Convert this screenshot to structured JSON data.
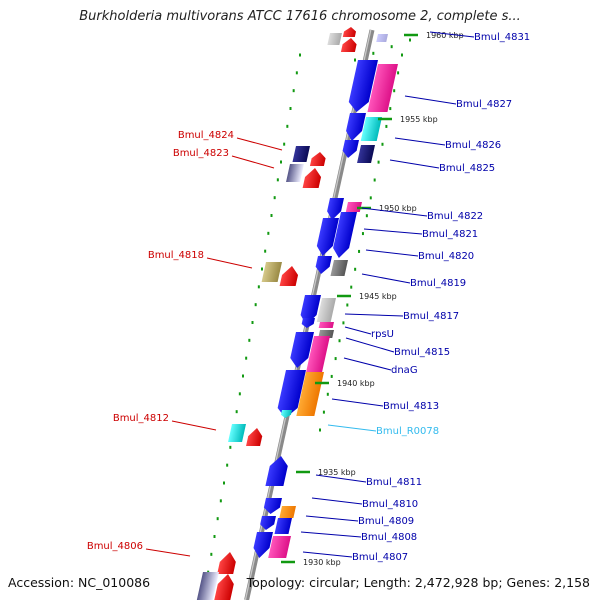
{
  "title": "Burkholderia multivorans ATCC 17616 chromosome 2, complete s...",
  "accession": "Accession: NC_010086",
  "topology": "Topology: circular; Length: 2,472,928 bp; Genes: 2,158",
  "colors": {
    "blue": "#1010ee",
    "pink": "#ee2299",
    "cyan": "#11dddd",
    "navy": "#111166",
    "gray": "#777777",
    "lightgray": "#bbbbbb",
    "olive": "#b8a85a",
    "orange": "#ff8800",
    "red": "#ee1111",
    "lavender": "#9999cc",
    "right_label": "#0000aa",
    "left_label": "#cc0000",
    "rna_label": "#33bbee",
    "tick_green": "#009900",
    "backbone": "#888888"
  },
  "scale": {
    "ticks": [
      {
        "label": "1960 kbp"
      },
      {
        "label": "1955 kbp"
      },
      {
        "label": "1950 kbp"
      },
      {
        "label": "1945 kbp"
      },
      {
        "label": "1940 kbp"
      },
      {
        "label": "1935 kbp"
      },
      {
        "label": "1930 kbp"
      }
    ]
  },
  "labels_right": [
    {
      "text": "Bmul_4831",
      "kind": "gene"
    },
    {
      "text": "Bmul_4827",
      "kind": "gene"
    },
    {
      "text": "Bmul_4826",
      "kind": "gene"
    },
    {
      "text": "Bmul_4825",
      "kind": "gene"
    },
    {
      "text": "Bmul_4822",
      "kind": "gene"
    },
    {
      "text": "Bmul_4821",
      "kind": "gene"
    },
    {
      "text": "Bmul_4820",
      "kind": "gene"
    },
    {
      "text": "Bmul_4819",
      "kind": "gene"
    },
    {
      "text": "Bmul_4817",
      "kind": "gene"
    },
    {
      "text": "rpsU",
      "kind": "gene"
    },
    {
      "text": "Bmul_4815",
      "kind": "gene"
    },
    {
      "text": "dnaG",
      "kind": "gene"
    },
    {
      "text": "Bmul_4813",
      "kind": "gene"
    },
    {
      "text": "Bmul_R0078",
      "kind": "rna"
    },
    {
      "text": "Bmul_4811",
      "kind": "gene"
    },
    {
      "text": "Bmul_4810",
      "kind": "gene"
    },
    {
      "text": "Bmul_4809",
      "kind": "gene"
    },
    {
      "text": "Bmul_4808",
      "kind": "gene"
    },
    {
      "text": "Bmul_4807",
      "kind": "gene"
    }
  ],
  "labels_left": [
    {
      "text": "Bmul_4824"
    },
    {
      "text": "Bmul_4823"
    },
    {
      "text": "Bmul_4818"
    },
    {
      "text": "Bmul_4812"
    },
    {
      "text": "Bmul_4806"
    }
  ]
}
